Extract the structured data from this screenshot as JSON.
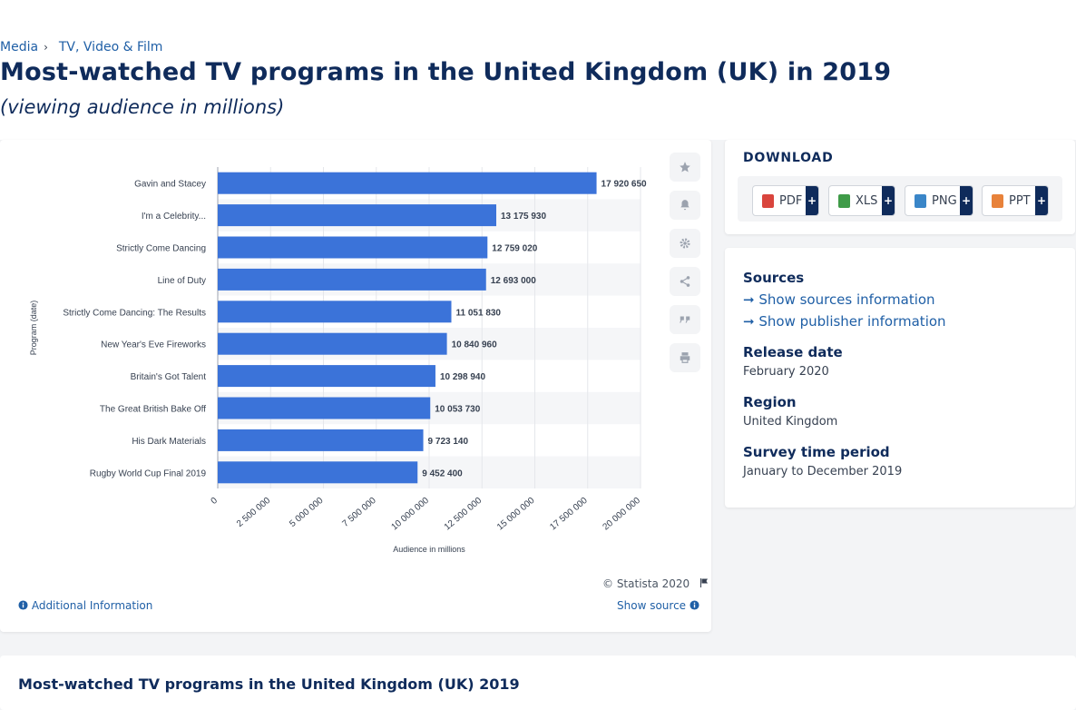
{
  "breadcrumb": {
    "items": [
      "Media",
      "TV, Video & Film"
    ]
  },
  "title": "Most-watched TV programs in the United Kingdom (UK) in 2019",
  "subtitle": "(viewing audience in millions)",
  "chart_data": {
    "type": "bar",
    "orientation": "horizontal",
    "categories": [
      "Gavin and Stacey",
      "I'm a Celebrity...",
      "Strictly Come Dancing",
      "Line of Duty",
      "Strictly Come Dancing: The Results",
      "New Year's Eve Fireworks",
      "Britain's Got Talent",
      "The Great British Bake Off",
      "His Dark Materials",
      "Rugby World Cup Final 2019"
    ],
    "values": [
      17920650,
      13175930,
      12759020,
      12693000,
      11051830,
      10840960,
      10298940,
      10053730,
      9723140,
      9452400
    ],
    "value_labels": [
      "17 920 650",
      "13 175 930",
      "12 759 020",
      "12 693 000",
      "11 051 830",
      "10 840 960",
      "10 298 940",
      "10 053 730",
      "9 723 140",
      "9 452 400"
    ],
    "xlabel": "Audience in millions",
    "ylabel": "Program (date)",
    "xlim": [
      0,
      20000000
    ],
    "ticks": [
      "0",
      "2 500 000",
      "5 000 000",
      "7 500 000",
      "10 000 000",
      "12 500 000",
      "15 000 000",
      "17 500 000",
      "20 000 000"
    ],
    "grid": true,
    "bar_color": "#3b73d9",
    "stripe_color": "#f5f6f8"
  },
  "chart_footer": {
    "copyright": "© Statista 2020",
    "additional_info": "Additional Information",
    "show_source": "Show source"
  },
  "tools": [
    "star-icon",
    "bell-icon",
    "gear-icon",
    "share-icon",
    "quote-icon",
    "print-icon"
  ],
  "download": {
    "title": "DOWNLOAD",
    "buttons": [
      {
        "label": "PDF",
        "color": "#d9453d"
      },
      {
        "label": "XLS",
        "color": "#3f9b48"
      },
      {
        "label": "PNG",
        "color": "#3a86c8"
      },
      {
        "label": "PPT",
        "color": "#e8823a"
      }
    ],
    "plus": "+"
  },
  "info": {
    "sources_heading": "Sources",
    "show_sources": "Show sources information",
    "show_publisher": "Show publisher information",
    "release_heading": "Release date",
    "release_value": "February 2020",
    "region_heading": "Region",
    "region_value": "United Kingdom",
    "survey_heading": "Survey time period",
    "survey_value": "January to December 2019"
  },
  "bottom": {
    "title": "Most-watched TV programs in the United Kingdom (UK) 2019"
  }
}
